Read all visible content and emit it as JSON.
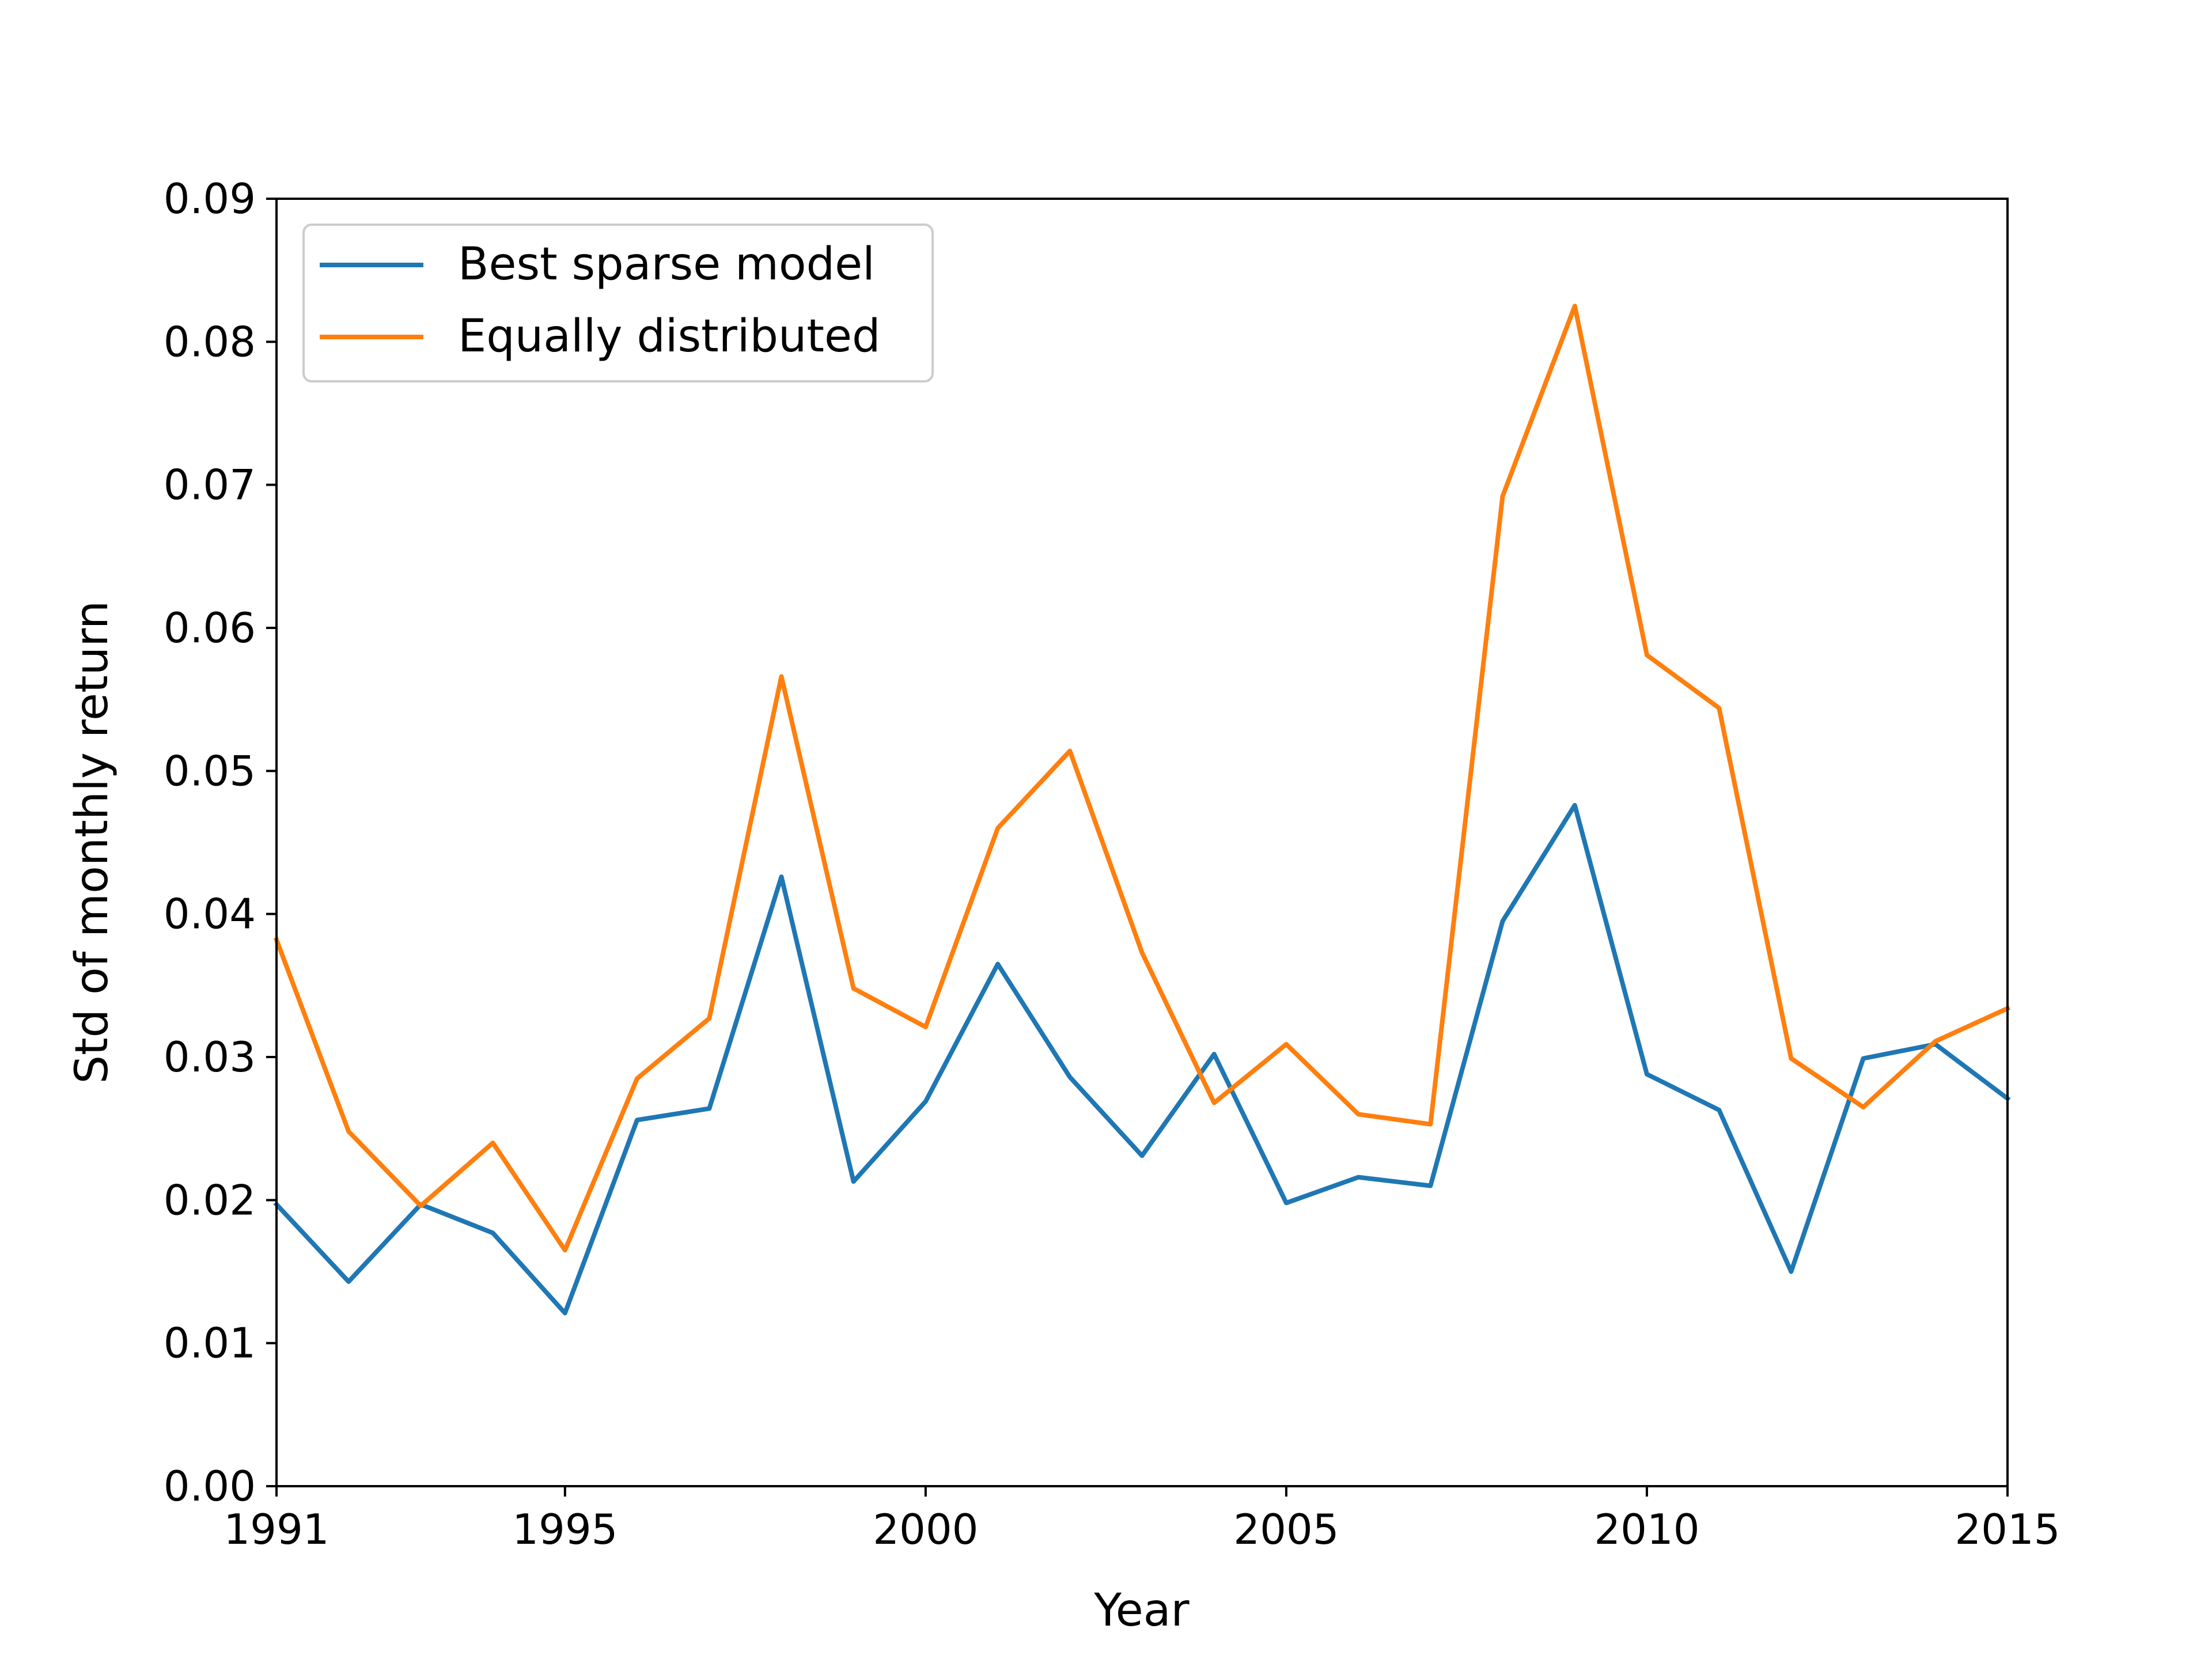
{
  "chart_data": {
    "type": "line",
    "title": "",
    "xlabel": "Year",
    "ylabel": "Std of monthly return",
    "xlim": [
      1991,
      2015
    ],
    "ylim": [
      0,
      0.09
    ],
    "xticks": [
      1991,
      1995,
      2000,
      2005,
      2010,
      2015
    ],
    "xtick_labels": [
      "1991",
      "1995",
      "2000",
      "2005",
      "2010",
      "2015"
    ],
    "yticks": [
      0,
      0.01,
      0.02,
      0.03,
      0.04,
      0.05,
      0.06,
      0.07,
      0.08,
      0.09
    ],
    "ytick_labels": [
      "0.00",
      "0.01",
      "0.02",
      "0.03",
      "0.04",
      "0.05",
      "0.06",
      "0.07",
      "0.08",
      "0.09"
    ],
    "grid": false,
    "legend_position": "top-left",
    "x": [
      1991,
      1992,
      1993,
      1994,
      1995,
      1996,
      1997,
      1998,
      1999,
      2000,
      2001,
      2002,
      2003,
      2004,
      2005,
      2006,
      2007,
      2008,
      2009,
      2010,
      2011,
      2012,
      2013,
      2014,
      2015
    ],
    "series": [
      {
        "name": "Best sparse model",
        "color": "#1f77b4",
        "values": [
          0.0197,
          0.0143,
          0.0197,
          0.0177,
          0.0121,
          0.0256,
          0.0264,
          0.0426,
          0.0213,
          0.0269,
          0.0365,
          0.0286,
          0.0231,
          0.0302,
          0.0198,
          0.0216,
          0.021,
          0.0395,
          0.0476,
          0.0288,
          0.0263,
          0.015,
          0.0299,
          0.0309,
          0.0271
        ]
      },
      {
        "name": "Equally distributed",
        "color": "#ff7f0e",
        "values": [
          0.0382,
          0.0248,
          0.0196,
          0.024,
          0.0165,
          0.0285,
          0.0327,
          0.0566,
          0.0348,
          0.0321,
          0.046,
          0.0514,
          0.0373,
          0.0268,
          0.0309,
          0.026,
          0.0253,
          0.0692,
          0.0825,
          0.0581,
          0.0544,
          0.0299,
          0.0265,
          0.0311,
          0.0334
        ]
      }
    ]
  }
}
